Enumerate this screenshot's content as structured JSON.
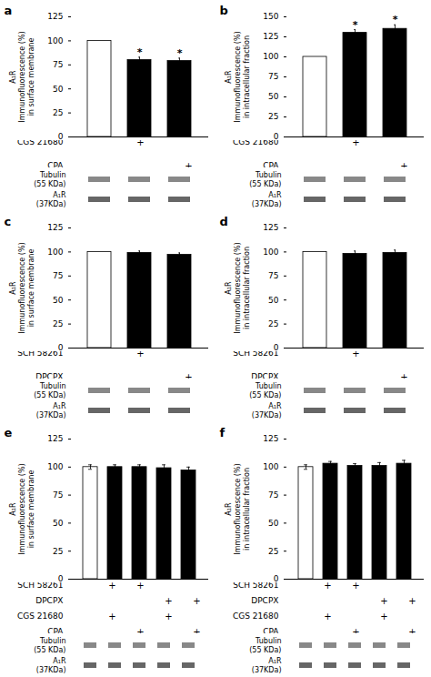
{
  "chart_data": [
    {
      "type": "bar",
      "title": "a",
      "categories": [
        null,
        null,
        null
      ],
      "values": [
        100,
        80,
        79
      ],
      "errors": [
        0,
        3,
        3
      ],
      "colors": [
        "white",
        "black",
        "black"
      ],
      "annotations": [
        null,
        "*",
        "*"
      ],
      "ylabel": "A₁R\nImmunofluorescence (%)\nin surface membrane",
      "ylim": [
        0,
        125
      ],
      "yticks": [
        0,
        25,
        50,
        75,
        100,
        125
      ],
      "tick_labels": "y",
      "grid": false,
      "conditions": [
        {
          "label": "CGS 21680",
          "marks": [
            null,
            "+",
            null
          ]
        },
        {
          "label": "CPA",
          "marks": [
            null,
            null,
            "+"
          ]
        }
      ],
      "blots": [
        {
          "name": "Tubulin",
          "size": "(55 KDa)",
          "color": "#888888"
        },
        {
          "name": "A₁R",
          "size": "(37KDa)",
          "color": "#666666"
        }
      ]
    },
    {
      "type": "bar",
      "title": "b",
      "categories": [
        null,
        null,
        null
      ],
      "values": [
        100,
        130,
        135
      ],
      "errors": [
        0,
        4,
        5
      ],
      "colors": [
        "white",
        "black",
        "black"
      ],
      "annotations": [
        null,
        "*",
        "*"
      ],
      "ylabel": "A₁R\nImmunofluorescence (%)\nin intracellular fraction",
      "ylim": [
        0,
        150
      ],
      "yticks": [
        0,
        25,
        50,
        75,
        100,
        125,
        150
      ],
      "tick_labels": "y",
      "grid": false,
      "conditions": [
        {
          "label": "CGS 21680",
          "marks": [
            null,
            "+",
            null
          ]
        },
        {
          "label": "CPA",
          "marks": [
            null,
            null,
            "+"
          ]
        }
      ],
      "blots": [
        {
          "name": "Tubulin",
          "size": "(55 KDa)",
          "color": "#888888"
        },
        {
          "name": "A₁R",
          "size": "(37KDa)",
          "color": "#666666"
        }
      ]
    },
    {
      "type": "bar",
      "title": "c",
      "categories": [
        null,
        null,
        null
      ],
      "values": [
        100,
        99,
        97
      ],
      "errors": [
        0,
        2,
        2
      ],
      "colors": [
        "white",
        "black",
        "black"
      ],
      "annotations": [
        null,
        null,
        null
      ],
      "ylabel": "A₁R\nImmunofluorescence (%)\nin surface membrane",
      "ylim": [
        0,
        125
      ],
      "yticks": [
        0,
        25,
        50,
        75,
        100,
        125
      ],
      "tick_labels": "y",
      "grid": false,
      "conditions": [
        {
          "label": "SCH 58261",
          "marks": [
            null,
            "+",
            null
          ]
        },
        {
          "label": "DPCPX",
          "marks": [
            null,
            null,
            "+"
          ]
        }
      ],
      "blots": [
        {
          "name": "Tubulin",
          "size": "(55 KDa)",
          "color": "#888888"
        },
        {
          "name": "A₁R",
          "size": "(37KDa)",
          "color": "#666666"
        }
      ]
    },
    {
      "type": "bar",
      "title": "d",
      "categories": [
        null,
        null,
        null
      ],
      "values": [
        100,
        98,
        99
      ],
      "errors": [
        0,
        3,
        3
      ],
      "colors": [
        "white",
        "black",
        "black"
      ],
      "annotations": [
        null,
        null,
        null
      ],
      "ylabel": "A₁R\nImmunofluorescence (%)\nin intracellular fraction",
      "ylim": [
        0,
        125
      ],
      "yticks": [
        0,
        25,
        50,
        75,
        100,
        125
      ],
      "tick_labels": "y",
      "grid": false,
      "conditions": [
        {
          "label": "SCH 58261",
          "marks": [
            null,
            "+",
            null
          ]
        },
        {
          "label": "DPCPX",
          "marks": [
            null,
            null,
            "+"
          ]
        }
      ],
      "blots": [
        {
          "name": "Tubulin",
          "size": "(55 KDa)",
          "color": "#888888"
        },
        {
          "name": "A₁R",
          "size": "(37KDa)",
          "color": "#666666"
        }
      ]
    },
    {
      "type": "bar",
      "title": "e",
      "categories": [
        null,
        null,
        null,
        null,
        null
      ],
      "values": [
        100,
        100,
        100,
        99,
        97
      ],
      "errors": [
        2,
        2,
        2,
        3,
        3
      ],
      "colors": [
        "white",
        "black",
        "black",
        "black",
        "black"
      ],
      "annotations": [
        null,
        null,
        null,
        null,
        null
      ],
      "ylabel": "A₁R\nImmunofluorescence (%)\nin surface membrane",
      "ylim": [
        0,
        125
      ],
      "yticks": [
        0,
        25,
        50,
        75,
        100,
        125
      ],
      "tick_labels": "y",
      "grid": false,
      "conditions": [
        {
          "label": "SCH 58261",
          "marks": [
            null,
            "+",
            "+",
            null,
            null
          ]
        },
        {
          "label": "DPCPX",
          "marks": [
            null,
            null,
            null,
            "+",
            "+"
          ]
        },
        {
          "label": "CGS 21680",
          "marks": [
            null,
            "+",
            null,
            "+",
            null
          ]
        },
        {
          "label": "CPA",
          "marks": [
            null,
            null,
            "+",
            null,
            "+"
          ]
        }
      ],
      "blots": [
        {
          "name": "Tubulin",
          "size": "(55 KDa)",
          "color": "#888888"
        },
        {
          "name": "A₁R",
          "size": "(37KDa)",
          "color": "#666666"
        }
      ]
    },
    {
      "type": "bar",
      "title": "f",
      "categories": [
        null,
        null,
        null,
        null,
        null
      ],
      "values": [
        100,
        103,
        101,
        101,
        103
      ],
      "errors": [
        2,
        2,
        2,
        3,
        3
      ],
      "colors": [
        "white",
        "black",
        "black",
        "black",
        "black"
      ],
      "annotations": [
        null,
        null,
        null,
        null,
        null
      ],
      "ylabel": "A₁R\nImmunofluorescence (%)\nin intracellular fraction",
      "ylim": [
        0,
        125
      ],
      "yticks": [
        0,
        25,
        50,
        75,
        100,
        125
      ],
      "tick_labels": "y",
      "grid": false,
      "conditions": [
        {
          "label": "SCH 58261",
          "marks": [
            null,
            "+",
            "+",
            null,
            null
          ]
        },
        {
          "label": "DPCPX",
          "marks": [
            null,
            null,
            null,
            "+",
            "+"
          ]
        },
        {
          "label": "CGS 21680",
          "marks": [
            null,
            "+",
            null,
            "+",
            null
          ]
        },
        {
          "label": "CPA",
          "marks": [
            null,
            null,
            "+",
            null,
            "+"
          ]
        }
      ],
      "blots": [
        {
          "name": "Tubulin",
          "size": "(55 KDa)",
          "color": "#888888"
        },
        {
          "name": "A₁R",
          "size": "(37KDa)",
          "color": "#666666"
        }
      ]
    }
  ]
}
